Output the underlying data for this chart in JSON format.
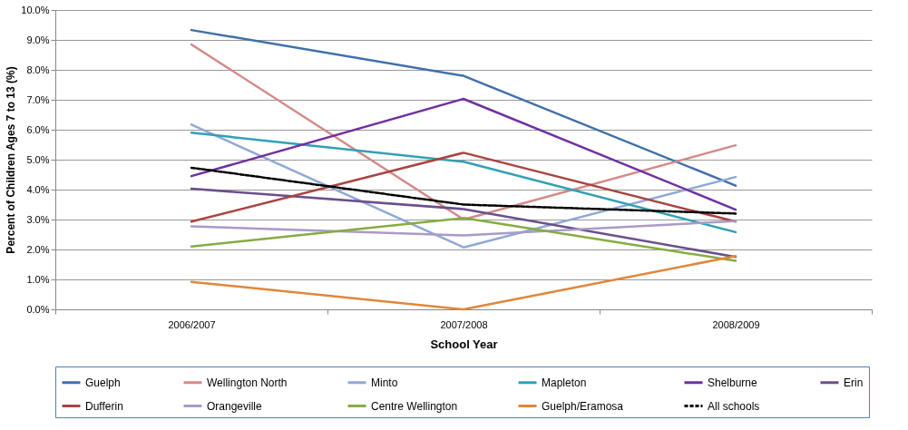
{
  "chart_data": {
    "type": "line",
    "xlabel": "School Year",
    "ylabel": "Percent of Children Ages 7 to 13 (%)",
    "categories": [
      "2006/2007",
      "2007/2008",
      "2008/2009"
    ],
    "ylim": [
      0,
      10
    ],
    "yticks": [
      {
        "value": 0,
        "label": "0.0%"
      },
      {
        "value": 1,
        "label": "1.0%"
      },
      {
        "value": 2,
        "label": "2.0%"
      },
      {
        "value": 3,
        "label": "3.0%"
      },
      {
        "value": 4,
        "label": "4.0%"
      },
      {
        "value": 5,
        "label": "5.0%"
      },
      {
        "value": 6,
        "label": "6.0%"
      },
      {
        "value": 7,
        "label": "7.0%"
      },
      {
        "value": 8,
        "label": "8.0%"
      },
      {
        "value": 9,
        "label": "9.0%"
      },
      {
        "value": 10,
        "label": "10.0%"
      }
    ],
    "grid": "y",
    "legend": "bottom",
    "marker": "none",
    "series": [
      {
        "name": "Guelph",
        "color": "#3f6fad",
        "values": [
          9.33,
          7.8,
          4.13
        ]
      },
      {
        "name": "Wellington North",
        "color": "#d48a88",
        "values": [
          8.85,
          3.0,
          5.48
        ]
      },
      {
        "name": "Minto",
        "color": "#8fa9d6",
        "values": [
          6.17,
          2.07,
          4.42
        ]
      },
      {
        "name": "Mapleton",
        "color": "#31a0b5",
        "values": [
          5.9,
          4.93,
          2.58
        ]
      },
      {
        "name": "Shelburne",
        "color": "#7030a0",
        "values": [
          4.45,
          7.03,
          3.33
        ]
      },
      {
        "name": "Erin",
        "color": "#6b4f8c",
        "values": [
          4.03,
          3.35,
          1.75
        ]
      },
      {
        "name": "Dufferin",
        "color": "#a94442",
        "values": [
          2.93,
          5.23,
          2.93
        ]
      },
      {
        "name": "Orangeville",
        "color": "#a99bc6",
        "values": [
          2.77,
          2.47,
          2.95
        ]
      },
      {
        "name": "Centre Wellington",
        "color": "#86ac41",
        "values": [
          2.1,
          3.05,
          1.62
        ]
      },
      {
        "name": "Guelph/Eramosa",
        "color": "#e0873a",
        "values": [
          0.92,
          0.0,
          1.78
        ]
      },
      {
        "name": "All schools",
        "color": "#000000",
        "values": [
          4.73,
          3.5,
          3.2
        ],
        "line_style": "dashed"
      }
    ]
  }
}
